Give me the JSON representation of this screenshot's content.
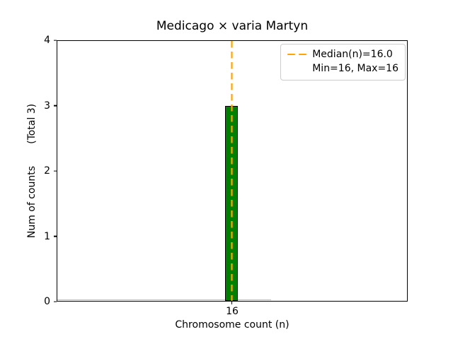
{
  "chart_data": {
    "type": "bar",
    "title": "Medicago × varia Martyn",
    "xlabel": "Chromosome count (n)",
    "ylabel": "Num of counts       (Total 3)",
    "categories": [
      16
    ],
    "values": [
      3
    ],
    "total_counts": 3,
    "xticks": [
      "16"
    ],
    "yticks": [
      0,
      1,
      2,
      3,
      4
    ],
    "ylim": [
      0,
      4
    ],
    "grid": false,
    "legend": {
      "position": "upper right",
      "entries": [
        "Median(n)=16.0",
        "Min=16, Max=16"
      ]
    },
    "stats": {
      "median": 16.0,
      "min": 16,
      "max": 16
    },
    "colors": {
      "bar_fill": "#008000",
      "bar_edge": "#000000",
      "median_line": "#FFA500",
      "legend_border": "#cccccc",
      "text": "#000000",
      "zero_bin_edge": "#bdbdbd"
    }
  }
}
